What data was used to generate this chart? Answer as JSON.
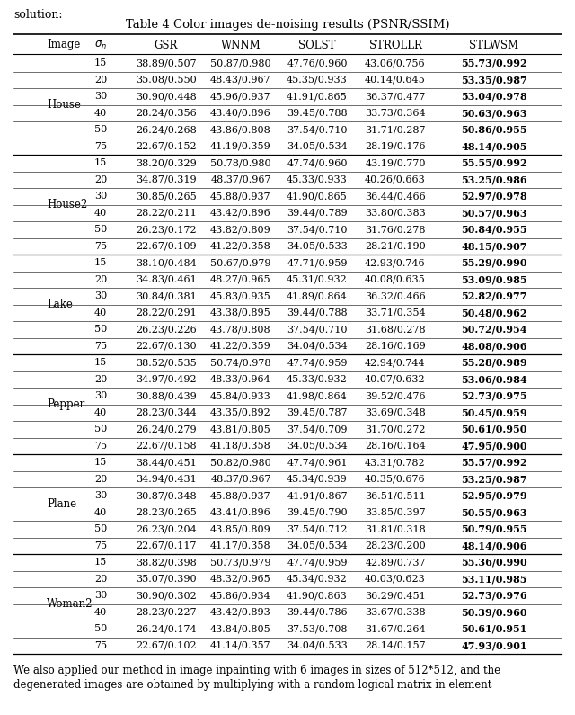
{
  "title": "Table 4 Color images de-noising results (PSNR/SSIM)",
  "col_headers": [
    "Image",
    "σ_n",
    "GSR",
    "WNNM",
    "SOLST",
    "STROLLR",
    "STLWSM"
  ],
  "rows": [
    [
      "House",
      "15",
      "38.89/0.507",
      "50.87/0.980",
      "47.76/0.960",
      "43.06/0.756",
      "55.73/0.992"
    ],
    [
      "House",
      "20",
      "35.08/0.550",
      "48.43/0.967",
      "45.35/0.933",
      "40.14/0.645",
      "53.35/0.987"
    ],
    [
      "House",
      "30",
      "30.90/0.448",
      "45.96/0.937",
      "41.91/0.865",
      "36.37/0.477",
      "53.04/0.978"
    ],
    [
      "House",
      "40",
      "28.24/0.356",
      "43.40/0.896",
      "39.45/0.788",
      "33.73/0.364",
      "50.63/0.963"
    ],
    [
      "House",
      "50",
      "26.24/0.268",
      "43.86/0.808",
      "37.54/0.710",
      "31.71/0.287",
      "50.86/0.955"
    ],
    [
      "House",
      "75",
      "22.67/0.152",
      "41.19/0.359",
      "34.05/0.534",
      "28.19/0.176",
      "48.14/0.905"
    ],
    [
      "House2",
      "15",
      "38.20/0.329",
      "50.78/0.980",
      "47.74/0.960",
      "43.19/0.770",
      "55.55/0.992"
    ],
    [
      "House2",
      "20",
      "34.87/0.319",
      "48.37/0.967",
      "45.33/0.933",
      "40.26/0.663",
      "53.25/0.986"
    ],
    [
      "House2",
      "30",
      "30.85/0.265",
      "45.88/0.937",
      "41.90/0.865",
      "36.44/0.466",
      "52.97/0.978"
    ],
    [
      "House2",
      "40",
      "28.22/0.211",
      "43.42/0.896",
      "39.44/0.789",
      "33.80/0.383",
      "50.57/0.963"
    ],
    [
      "House2",
      "50",
      "26.23/0.172",
      "43.82/0.809",
      "37.54/0.710",
      "31.76/0.278",
      "50.84/0.955"
    ],
    [
      "House2",
      "75",
      "22.67/0.109",
      "41.22/0.358",
      "34.05/0.533",
      "28.21/0.190",
      "48.15/0.907"
    ],
    [
      "Lake",
      "15",
      "38.10/0.484",
      "50.67/0.979",
      "47.71/0.959",
      "42.93/0.746",
      "55.29/0.990"
    ],
    [
      "Lake",
      "20",
      "34.83/0.461",
      "48.27/0.965",
      "45.31/0.932",
      "40.08/0.635",
      "53.09/0.985"
    ],
    [
      "Lake",
      "30",
      "30.84/0.381",
      "45.83/0.935",
      "41.89/0.864",
      "36.32/0.466",
      "52.82/0.977"
    ],
    [
      "Lake",
      "40",
      "28.22/0.291",
      "43.38/0.895",
      "39.44/0.788",
      "33.71/0.354",
      "50.48/0.962"
    ],
    [
      "Lake",
      "50",
      "26.23/0.226",
      "43.78/0.808",
      "37.54/0.710",
      "31.68/0.278",
      "50.72/0.954"
    ],
    [
      "Lake",
      "75",
      "22.67/0.130",
      "41.22/0.359",
      "34.04/0.534",
      "28.16/0.169",
      "48.08/0.906"
    ],
    [
      "Pepper",
      "15",
      "38.52/0.535",
      "50.74/0.978",
      "47.74/0.959",
      "42.94/0.744",
      "55.28/0.989"
    ],
    [
      "Pepper",
      "20",
      "34.97/0.492",
      "48.33/0.964",
      "45.33/0.932",
      "40.07/0.632",
      "53.06/0.984"
    ],
    [
      "Pepper",
      "30",
      "30.88/0.439",
      "45.84/0.933",
      "41.98/0.864",
      "39.52/0.476",
      "52.73/0.975"
    ],
    [
      "Pepper",
      "40",
      "28.23/0.344",
      "43.35/0.892",
      "39.45/0.787",
      "33.69/0.348",
      "50.45/0.959"
    ],
    [
      "Pepper",
      "50",
      "26.24/0.279",
      "43.81/0.805",
      "37.54/0.709",
      "31.70/0.272",
      "50.61/0.950"
    ],
    [
      "Pepper",
      "75",
      "22.67/0.158",
      "41.18/0.358",
      "34.05/0.534",
      "28.16/0.164",
      "47.95/0.900"
    ],
    [
      "Plane",
      "15",
      "38.44/0.451",
      "50.82/0.980",
      "47.74/0.961",
      "43.31/0.782",
      "55.57/0.992"
    ],
    [
      "Plane",
      "20",
      "34.94/0.431",
      "48.37/0.967",
      "45.34/0.939",
      "40.35/0.676",
      "53.25/0.987"
    ],
    [
      "Plane",
      "30",
      "30.87/0.348",
      "45.88/0.937",
      "41.91/0.867",
      "36.51/0.511",
      "52.95/0.979"
    ],
    [
      "Plane",
      "40",
      "28.23/0.265",
      "43.41/0.896",
      "39.45/0.790",
      "33.85/0.397",
      "50.55/0.963"
    ],
    [
      "Plane",
      "50",
      "26.23/0.204",
      "43.85/0.809",
      "37.54/0.712",
      "31.81/0.318",
      "50.79/0.955"
    ],
    [
      "Plane",
      "75",
      "22.67/0.117",
      "41.17/0.358",
      "34.05/0.534",
      "28.23/0.200",
      "48.14/0.906"
    ],
    [
      "Woman2",
      "15",
      "38.82/0.398",
      "50.73/0.979",
      "47.74/0.959",
      "42.89/0.737",
      "55.36/0.990"
    ],
    [
      "Woman2",
      "20",
      "35.07/0.390",
      "48.32/0.965",
      "45.34/0.932",
      "40.03/0.623",
      "53.11/0.985"
    ],
    [
      "Woman2",
      "30",
      "30.90/0.302",
      "45.86/0.934",
      "41.90/0.863",
      "36.29/0.451",
      "52.73/0.976"
    ],
    [
      "Woman2",
      "40",
      "28.23/0.227",
      "43.42/0.893",
      "39.44/0.786",
      "33.67/0.338",
      "50.39/0.960"
    ],
    [
      "Woman2",
      "50",
      "26.24/0.174",
      "43.84/0.805",
      "37.53/0.708",
      "31.67/0.264",
      "50.61/0.951"
    ],
    [
      "Woman2",
      "75",
      "22.67/0.102",
      "41.14/0.357",
      "34.04/0.533",
      "28.14/0.157",
      "47.93/0.901"
    ]
  ],
  "image_groups": [
    "House",
    "House2",
    "Lake",
    "Pepper",
    "Plane",
    "Woman2"
  ],
  "group_sizes": [
    6,
    6,
    6,
    6,
    6,
    6
  ],
  "caption_line1": "We also applied our method in image inpainting with 6 images in sizes of 512*512, and the",
  "caption_line2": "degenerated images are obtained by multiplying with a random logical matrix in element",
  "preamble": "solution:"
}
